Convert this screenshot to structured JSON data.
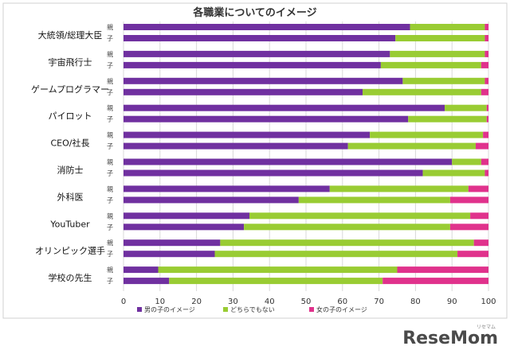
{
  "chart_data": {
    "type": "bar",
    "stacked": true,
    "orientation": "horizontal",
    "title": "各職業についてのイメージ",
    "xlim": [
      0,
      100
    ],
    "xticks": [
      0,
      10,
      20,
      30,
      40,
      50,
      60,
      70,
      80,
      90,
      100
    ],
    "sub_labels": [
      "親",
      "子"
    ],
    "categories": [
      "大統領/総理大臣",
      "宇宙飛行士",
      "ゲームプログラマー",
      "パイロット",
      "CEO/社長",
      "消防士",
      "外科医",
      "YouTuber",
      "オリンピック選手",
      "学校の先生"
    ],
    "series": [
      {
        "name": "男の子のイメージ",
        "color": "#7030a0",
        "values": [
          [
            78.5,
            74.5
          ],
          [
            73,
            70.5
          ],
          [
            76.5,
            65.5
          ],
          [
            88,
            78
          ],
          [
            67.5,
            61.5
          ],
          [
            90,
            82
          ],
          [
            56.5,
            48
          ],
          [
            34.5,
            33
          ],
          [
            26.5,
            25
          ],
          [
            9.5,
            12.5
          ]
        ]
      },
      {
        "name": "どちらでもない",
        "color": "#99cc33",
        "values": [
          [
            20.5,
            24.5
          ],
          [
            26,
            27.5
          ],
          [
            22.5,
            32.5
          ],
          [
            11.5,
            21.5
          ],
          [
            31,
            35
          ],
          [
            8,
            17
          ],
          [
            38,
            41.5
          ],
          [
            60.5,
            56.5
          ],
          [
            69.5,
            66.5
          ],
          [
            65.5,
            58.5
          ]
        ]
      },
      {
        "name": "女の子のイメージ",
        "color": "#e0328c",
        "values": [
          [
            1,
            1
          ],
          [
            1,
            2
          ],
          [
            1,
            2
          ],
          [
            0.5,
            0.5
          ],
          [
            1.5,
            3.5
          ],
          [
            2,
            1
          ],
          [
            5.5,
            10.5
          ],
          [
            5,
            10.5
          ],
          [
            4,
            8.5
          ],
          [
            25,
            29
          ]
        ]
      }
    ],
    "legend_position": "bottom"
  },
  "watermark": {
    "brand": "ReseMom",
    "kana": "リセマム"
  }
}
